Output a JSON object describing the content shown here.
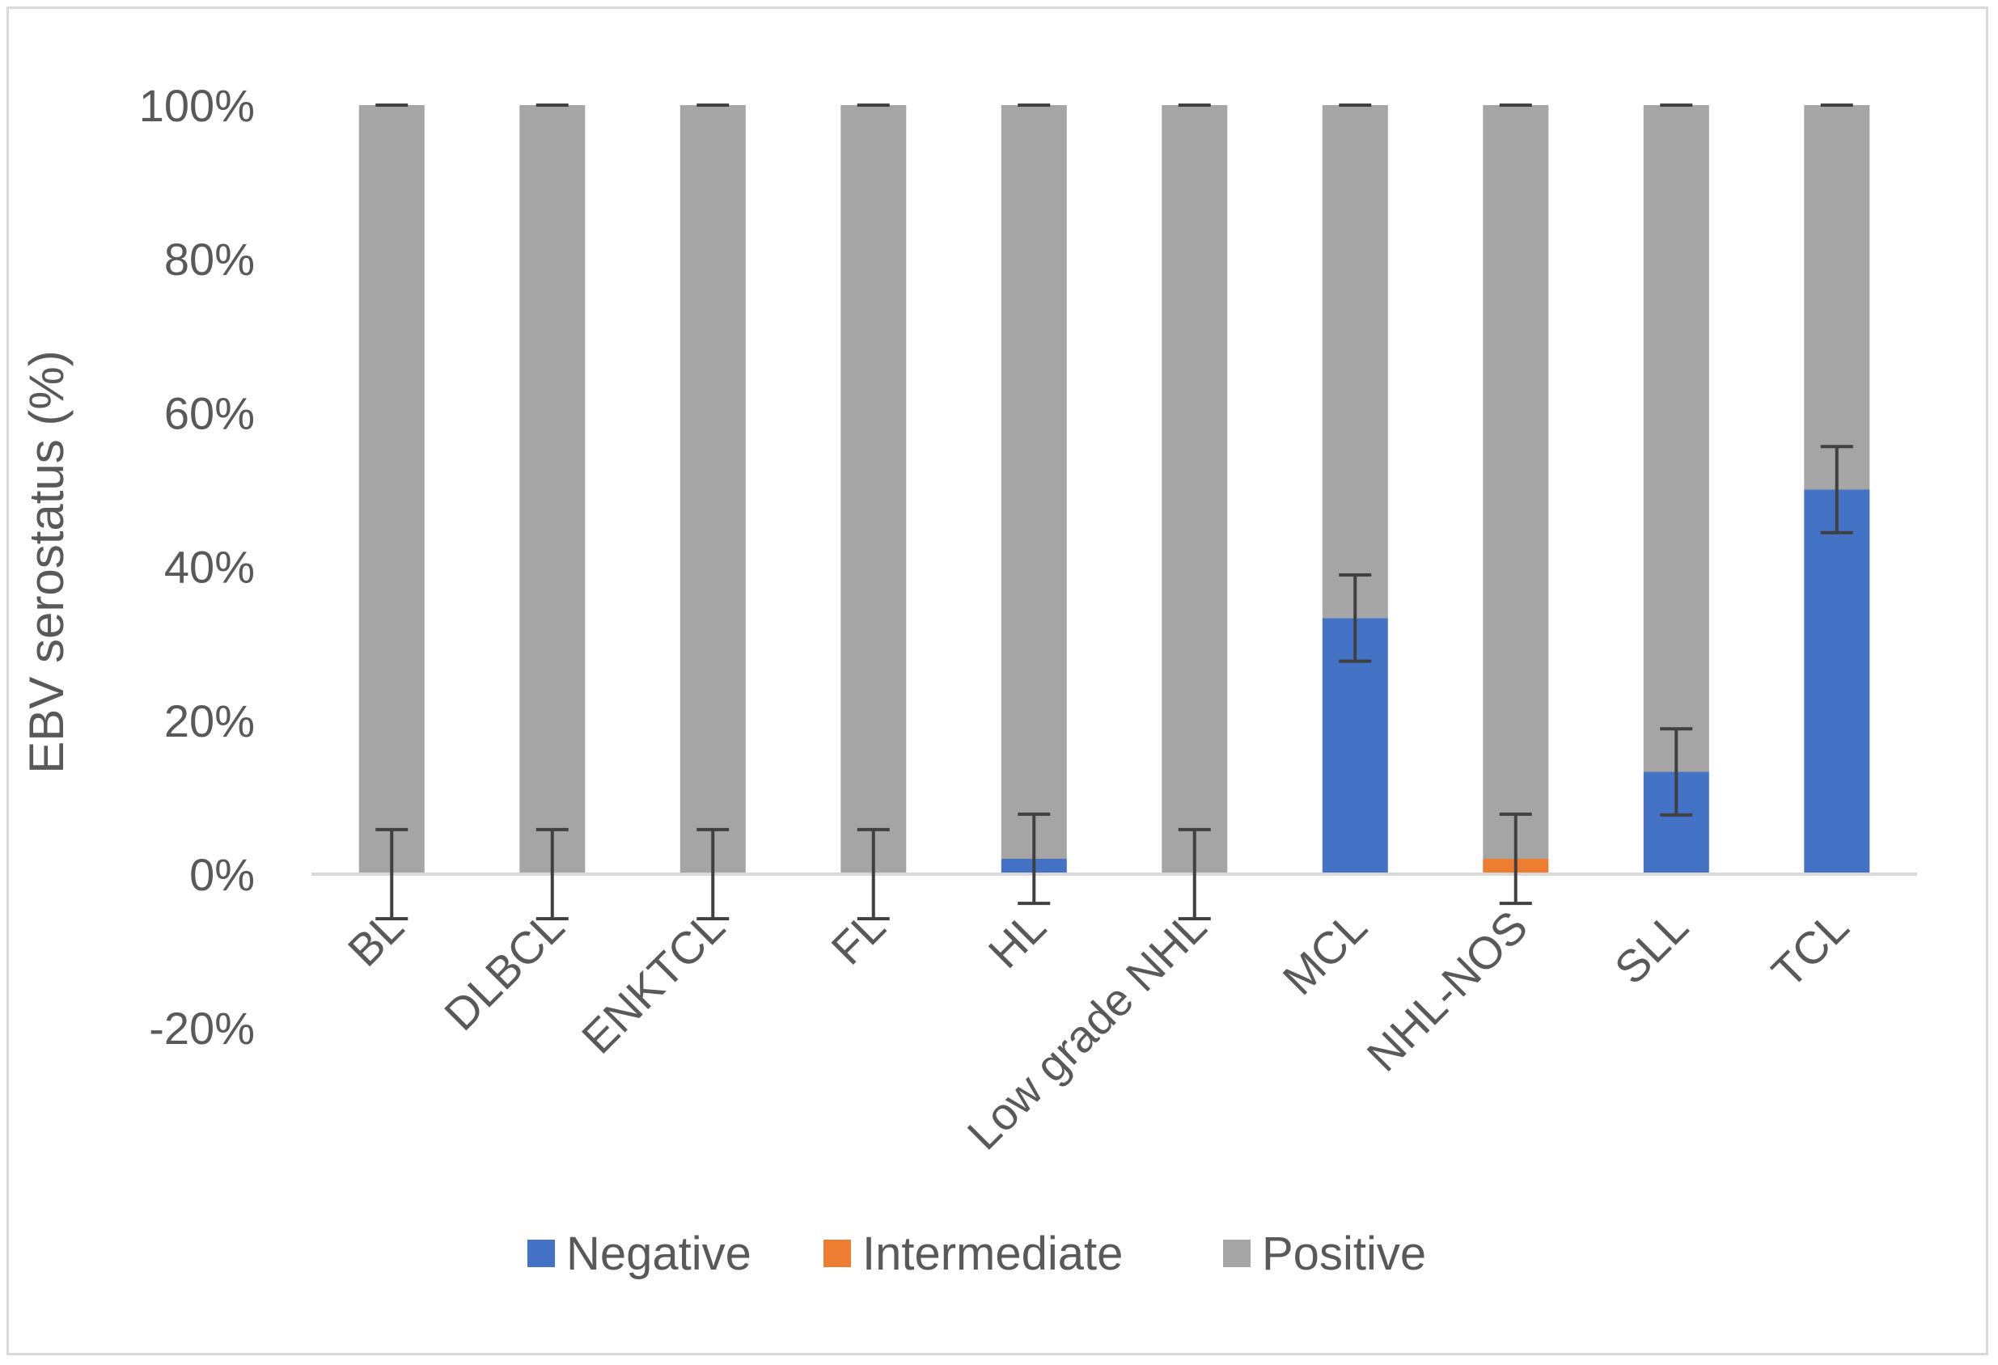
{
  "chart_data": {
    "type": "bar",
    "stacked": true,
    "title": "",
    "xlabel": "",
    "ylabel": "EBV serostatus (%)",
    "ylim": [
      -20,
      100
    ],
    "yticks": [
      -20,
      0,
      20,
      40,
      60,
      80,
      100
    ],
    "ytick_labels": [
      "-20%",
      "0%",
      "20%",
      "40%",
      "60%",
      "80%",
      "100%"
    ],
    "grid": false,
    "legend_position": "bottom",
    "categories": [
      "BL",
      "DLBCL",
      "ENKTCL",
      "FL",
      "HL",
      "Low grade NHL",
      "MCL",
      "NHL-NOS",
      "SLL",
      "TCL"
    ],
    "series": [
      {
        "name": "Negative",
        "color": "#4472c4",
        "values": [
          0,
          0,
          0,
          0,
          2,
          0,
          33.3,
          0,
          13.3,
          50
        ],
        "error": [
          5.8,
          5.8,
          5.8,
          5.8,
          5.8,
          5.8,
          5.6,
          0,
          5.6,
          5.6
        ]
      },
      {
        "name": "Intermediate",
        "color": "#ed7d31",
        "values": [
          0,
          0,
          0,
          0,
          0,
          0,
          0,
          2,
          0,
          0
        ],
        "error": [
          0,
          0,
          0,
          0,
          0,
          0,
          0,
          5.8,
          0,
          0
        ]
      },
      {
        "name": "Positive",
        "color": "#a5a5a5",
        "values": [
          100,
          100,
          100,
          100,
          98,
          100,
          66.7,
          98,
          86.7,
          50
        ],
        "error": [
          0,
          0,
          0,
          0,
          0,
          0,
          0,
          0,
          0,
          0
        ]
      }
    ],
    "error_bar_color": "#404040",
    "axis_color": "#d9d9d9",
    "text_color": "#595959"
  }
}
